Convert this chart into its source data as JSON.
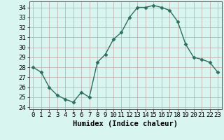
{
  "x": [
    0,
    1,
    2,
    3,
    4,
    5,
    6,
    7,
    8,
    9,
    10,
    11,
    12,
    13,
    14,
    15,
    16,
    17,
    18,
    19,
    20,
    21,
    22,
    23
  ],
  "y": [
    28,
    27.5,
    26,
    25.2,
    24.8,
    24.5,
    25.5,
    25,
    28.5,
    29.3,
    30.8,
    31.5,
    33,
    34,
    34,
    34.2,
    34,
    33.7,
    32.6,
    30.3,
    29,
    28.8,
    28.5,
    27.5
  ],
  "line_color": "#2d6e5e",
  "marker": "D",
  "marker_size": 2.5,
  "bg_color": "#d8f5f0",
  "grid_color": "#c0a8a8",
  "xlabel": "Humidex (Indice chaleur)",
  "xlim": [
    -0.5,
    23.5
  ],
  "ylim": [
    23.8,
    34.6
  ],
  "yticks": [
    24,
    25,
    26,
    27,
    28,
    29,
    30,
    31,
    32,
    33,
    34
  ],
  "xticks": [
    0,
    1,
    2,
    3,
    4,
    5,
    6,
    7,
    8,
    9,
    10,
    11,
    12,
    13,
    14,
    15,
    16,
    17,
    18,
    19,
    20,
    21,
    22,
    23
  ],
  "xtick_labels": [
    "0",
    "1",
    "2",
    "3",
    "4",
    "5",
    "6",
    "7",
    "8",
    "9",
    "10",
    "11",
    "12",
    "13",
    "14",
    "15",
    "16",
    "17",
    "18",
    "19",
    "20",
    "21",
    "22",
    "23"
  ],
  "xlabel_fontsize": 7.5,
  "tick_fontsize": 6.5,
  "line_width": 1.0
}
